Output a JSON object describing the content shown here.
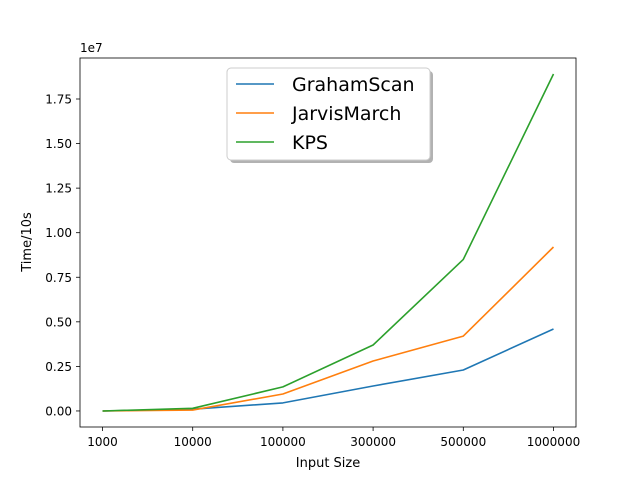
{
  "chart_data": {
    "type": "line",
    "xlabel": "Input Size",
    "ylabel": "Time/10s",
    "categories": [
      "1000",
      "10000",
      "100000",
      "300000",
      "500000",
      "1000000"
    ],
    "y_scale_label": "1e7",
    "y_ticks": [
      "0.00",
      "0.25",
      "0.50",
      "0.75",
      "1.00",
      "1.25",
      "1.50",
      "1.75"
    ],
    "ylim": [
      -0.09,
      1.98
    ],
    "grid": false,
    "legend_position": "upper center",
    "series": [
      {
        "name": "GrahamScan",
        "color": "#1f77b4",
        "values": [
          0.0,
          0.01,
          0.045,
          0.14,
          0.23,
          0.46
        ]
      },
      {
        "name": "JarvisMarch",
        "color": "#ff7f0e",
        "values": [
          0.0,
          0.005,
          0.095,
          0.28,
          0.42,
          0.92
        ]
      },
      {
        "name": "KPS",
        "color": "#2ca02c",
        "values": [
          0.0,
          0.015,
          0.135,
          0.37,
          0.85,
          1.89
        ]
      }
    ]
  }
}
